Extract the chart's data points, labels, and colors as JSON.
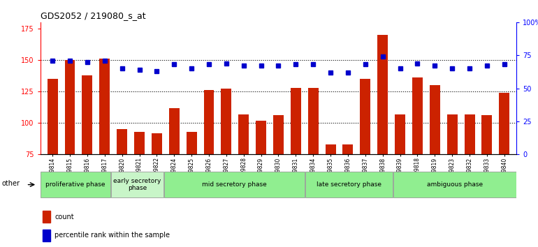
{
  "title": "GDS2052 / 219080_s_at",
  "samples": [
    "GSM109814",
    "GSM109815",
    "GSM109816",
    "GSM109817",
    "GSM109820",
    "GSM109821",
    "GSM109822",
    "GSM109824",
    "GSM109825",
    "GSM109826",
    "GSM109827",
    "GSM109828",
    "GSM109829",
    "GSM109830",
    "GSM109831",
    "GSM109834",
    "GSM109835",
    "GSM109836",
    "GSM109837",
    "GSM109838",
    "GSM109839",
    "GSM109818",
    "GSM109819",
    "GSM109823",
    "GSM109832",
    "GSM109833",
    "GSM109840"
  ],
  "bar_values": [
    135,
    150,
    138,
    151,
    95,
    93,
    92,
    112,
    93,
    126,
    127,
    107,
    102,
    106,
    128,
    128,
    83,
    83,
    135,
    170,
    107,
    136,
    130,
    107,
    107,
    106,
    124
  ],
  "dot_values": [
    71,
    71,
    70,
    71,
    65,
    64,
    63,
    68,
    65,
    68,
    69,
    67,
    67,
    67,
    68,
    68,
    62,
    62,
    68,
    74,
    65,
    69,
    67,
    65,
    65,
    67,
    68
  ],
  "phases": [
    {
      "label": "proliferative phase",
      "start": 0,
      "end": 4,
      "color": "#90EE90"
    },
    {
      "label": "early secretory\nphase",
      "start": 4,
      "end": 7,
      "color": "#c8f5c8"
    },
    {
      "label": "mid secretory phase",
      "start": 7,
      "end": 15,
      "color": "#90EE90"
    },
    {
      "label": "late secretory phase",
      "start": 15,
      "end": 20,
      "color": "#90EE90"
    },
    {
      "label": "ambiguous phase",
      "start": 20,
      "end": 27,
      "color": "#90EE90"
    }
  ],
  "bar_color": "#cc2200",
  "dot_color": "#0000cc",
  "ylim_left": [
    75,
    180
  ],
  "ylim_right": [
    0,
    100
  ],
  "yticks_left": [
    75,
    100,
    125,
    150,
    175
  ],
  "yticks_right": [
    0,
    25,
    50,
    75,
    100
  ],
  "ytick_labels_right": [
    "0",
    "25",
    "50",
    "75",
    "100%"
  ],
  "grid_values": [
    100,
    125,
    150
  ],
  "background_color": "#ffffff"
}
